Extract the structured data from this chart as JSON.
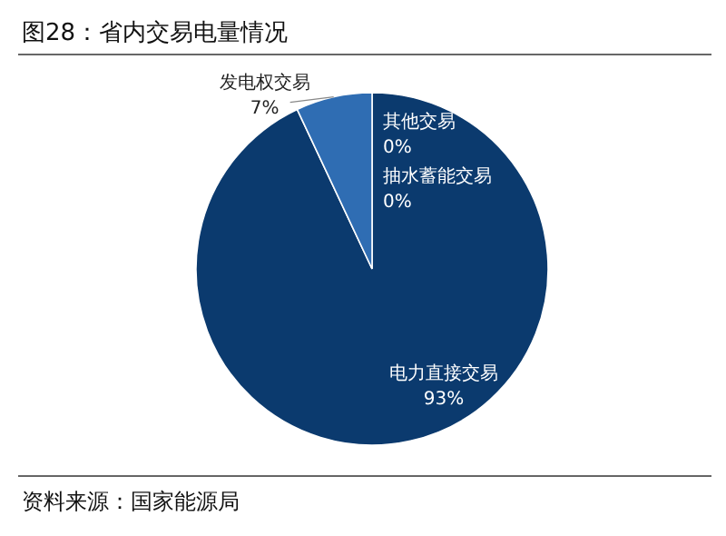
{
  "chart_data": {
    "type": "pie",
    "title": "图28：省内交易电量情况",
    "categories": [
      "其他交易",
      "抽水蓄能交易",
      "电力直接交易",
      "发电权交易"
    ],
    "values": [
      0,
      0,
      93,
      7
    ],
    "value_labels": [
      "0%",
      "0%",
      "93%",
      "7%"
    ],
    "colors": [
      "#c9d9ec",
      "#8fb3dc",
      "#0b3a6e",
      "#2f6db3"
    ],
    "annotations": [
      "资料来源：国家能源局"
    ]
  }
}
